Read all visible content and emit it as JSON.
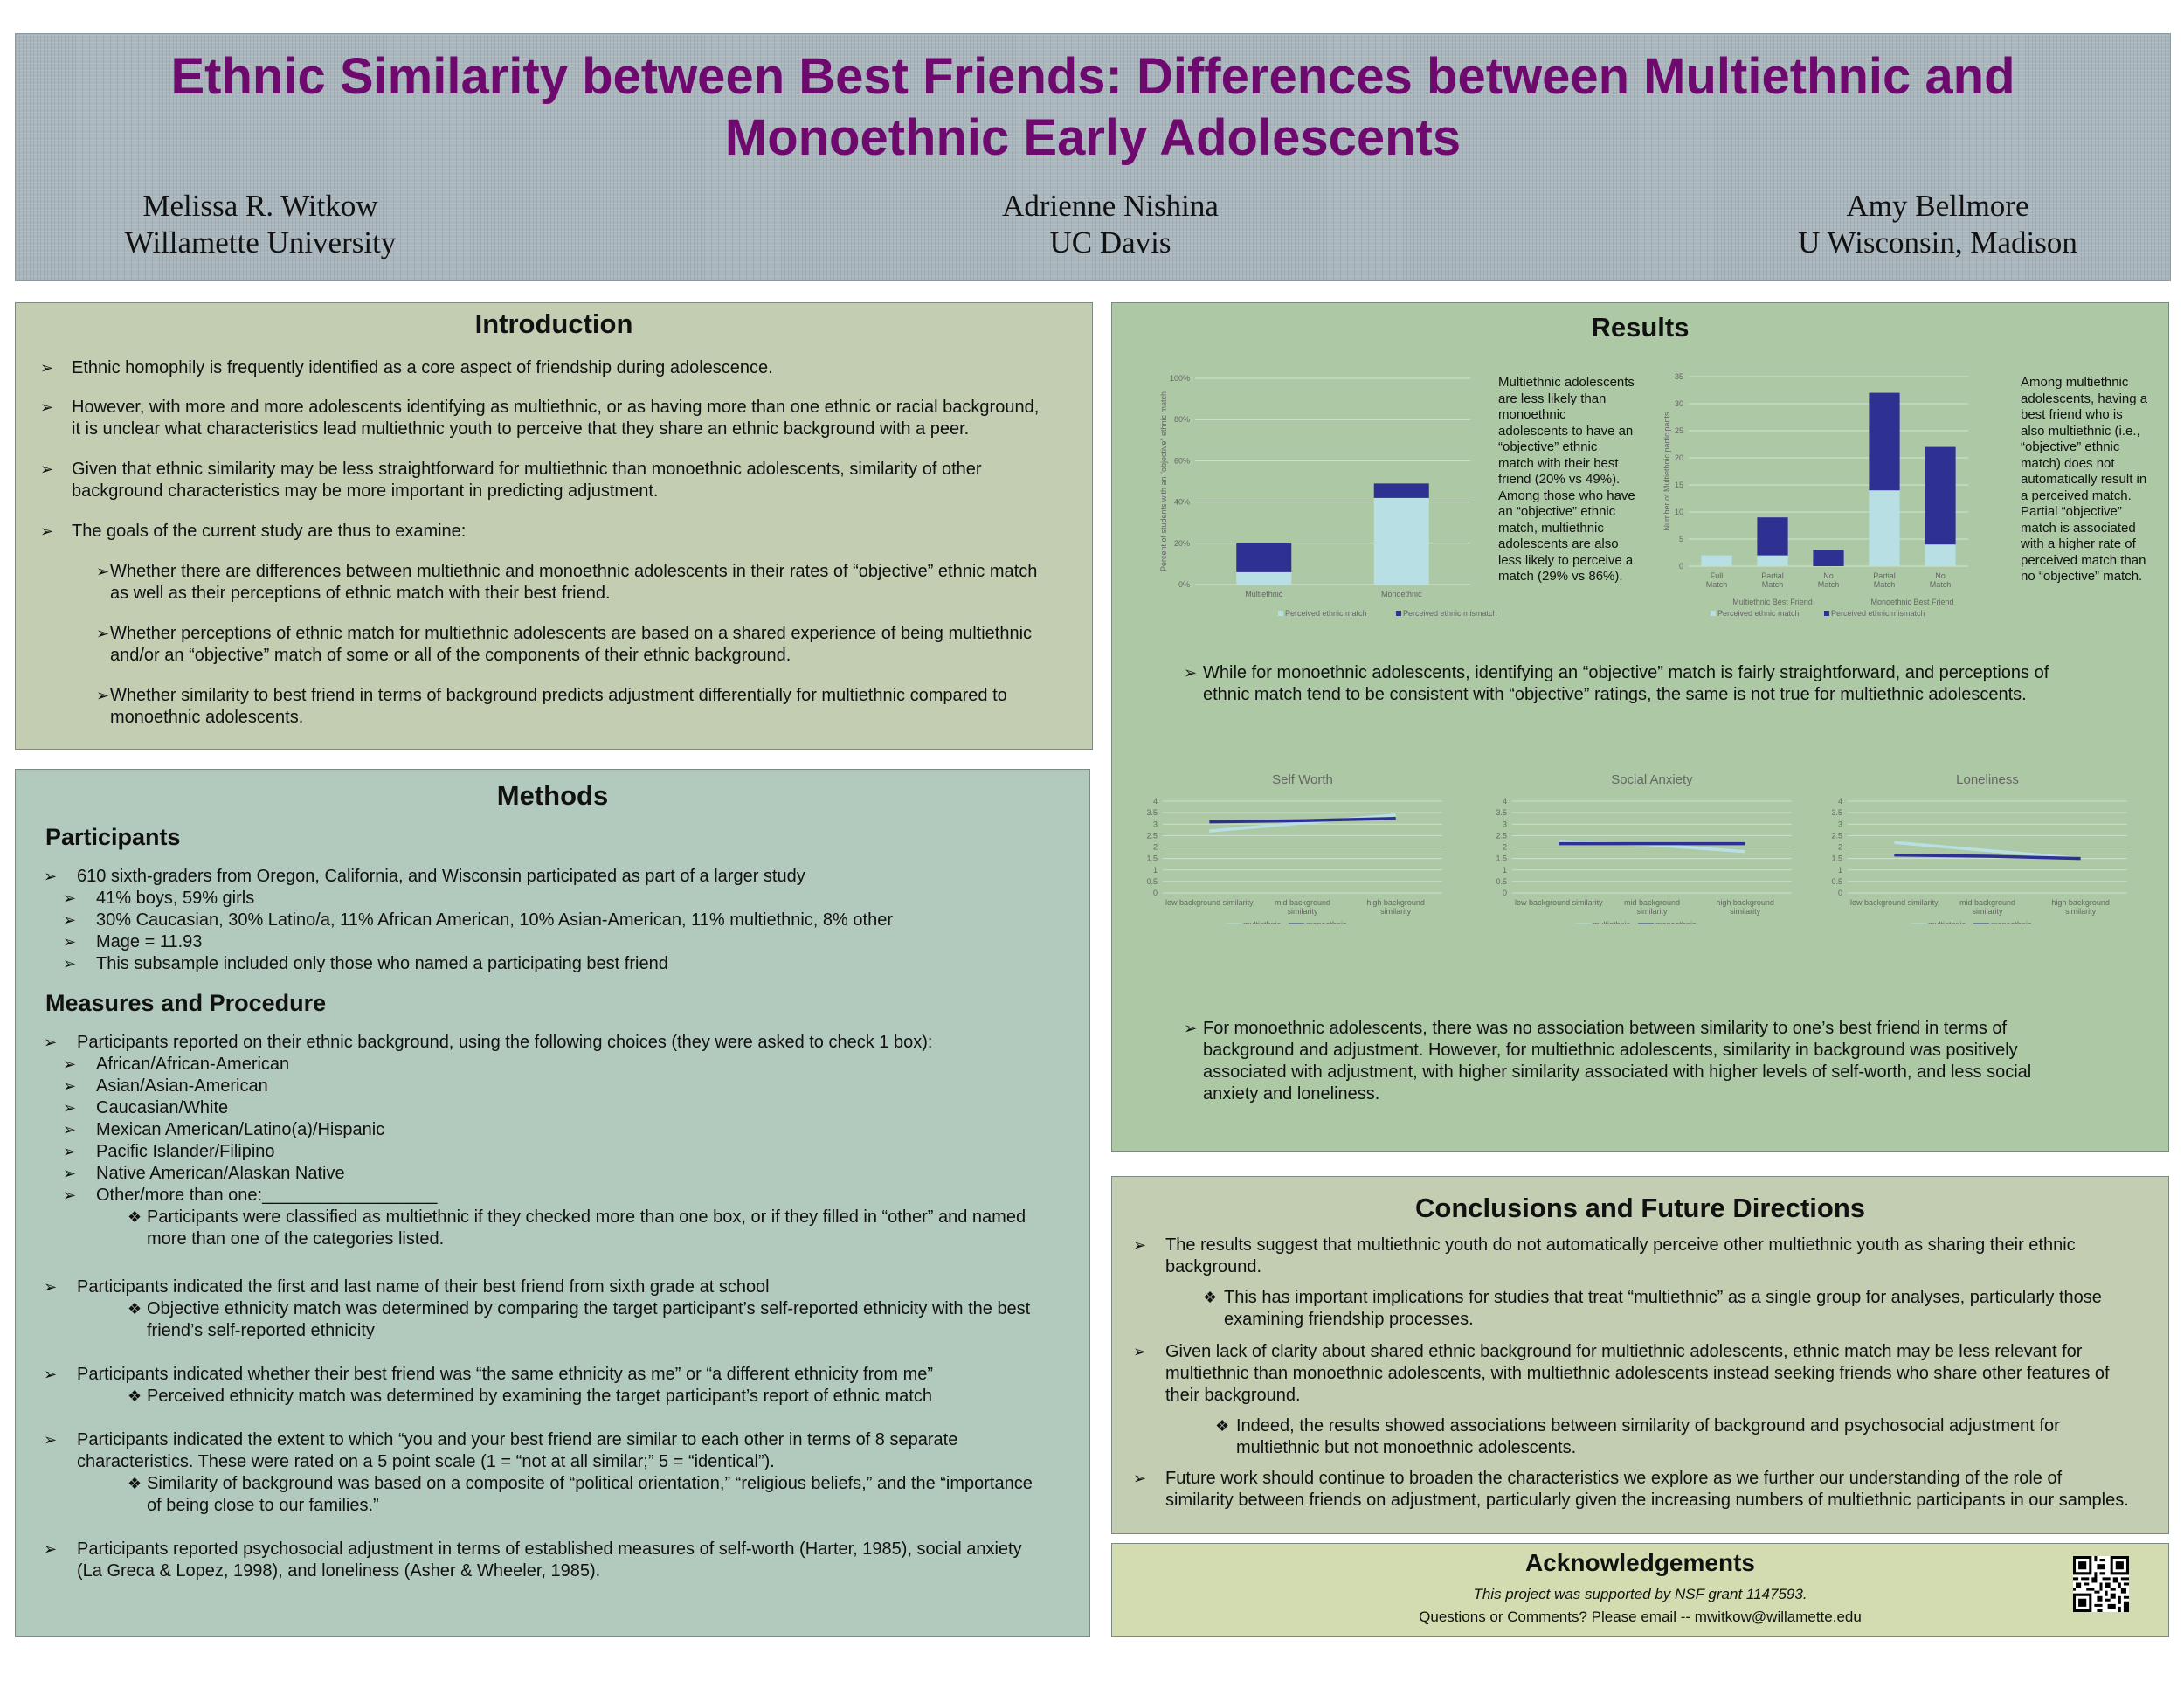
{
  "header": {
    "title_line1": "Ethnic Similarity between Best Friends: Differences between Multiethnic and",
    "title_line2": "Monoethnic Early Adolescents",
    "authors": [
      {
        "name": "Melissa R. Witkow",
        "affiliation": "Willamette University"
      },
      {
        "name": "Adrienne Nishina",
        "affiliation": "UC Davis"
      },
      {
        "name": "Amy Bellmore",
        "affiliation": "U Wisconsin, Madison"
      }
    ]
  },
  "introduction": {
    "heading": "Introduction",
    "bullets": [
      [
        "Ethnic homophily is frequently identified as a core aspect of friendship during adolescence."
      ],
      [
        "However, with more and more adolescents identifying as multiethnic, or as having more than one ethnic or racial background,",
        "it is unclear what characteristics lead multiethnic youth to perceive that they share an ethnic background with a peer."
      ],
      [
        "Given that ethnic similarity may be less straightforward for multiethnic than monoethnic adolescents, similarity of other",
        "background characteristics may be more important in predicting adjustment."
      ],
      [
        "The goals of the current study are thus to examine:"
      ]
    ],
    "goals": [
      [
        "Whether there are differences between multiethnic and monoethnic adolescents in their rates of “objective” ethnic match",
        "as well as their perceptions of ethnic match with their best friend."
      ],
      [
        "Whether perceptions of ethnic match for multiethnic adolescents are based on a shared experience of being multiethnic",
        "and/or an “objective” match of some or all of the components of their ethnic background."
      ],
      [
        "Whether similarity  to best friend in terms of background predicts adjustment differentially  for multiethnic compared to",
        "monoethnic adolescents."
      ]
    ]
  },
  "methods": {
    "heading": "Methods",
    "participants_heading": "Participants",
    "participants_main": "610 sixth-graders from Oregon, California, and Wisconsin participated as part of a larger study",
    "participants_sub": [
      "41% boys, 59% girls",
      "30% Caucasian, 30% Latino/a, 11% African American, 10% Asian-American, 11% multiethnic, 8% other",
      "Mage = 11.93",
      "This subsample included only those who named a participating best friend"
    ],
    "measures_heading": "Measures and Procedure",
    "m1": "Participants reported on their ethnic background, using the following choices (they were asked to check 1 box):",
    "choices": [
      "African/African-American",
      "Asian/Asian-American",
      "Caucasian/White",
      "Mexican American/Latino(a)/Hispanic",
      "Pacific Islander/Filipino",
      "Native American/Alaskan Native",
      "Other/more than one:__________________"
    ],
    "m1_note": [
      "Participants were classified as multiethnic if they checked more than one box, or if they filled in “other” and named",
      "more than one of the categories listed."
    ],
    "m2": "Participants indicated the first and last name of their best friend from sixth grade at school",
    "m2_note": [
      "Objective ethnicity match was determined by comparing the target participant’s self-reported ethnicity with the best",
      "friend’s self-reported ethnicity"
    ],
    "m3": "Participants indicated whether their best friend was “the same ethnicity as me” or “a different ethnicity from me”",
    "m3_note": "Perceived ethnicity match was determined by examining the target participant’s report of ethnic match",
    "m4": [
      "Participants indicated the extent to which “you and your best friend are similar to each other in terms of 8 separate",
      "characteristics.  These were rated on a 5 point scale (1 = “not at all similar;” 5 = “identical”)."
    ],
    "m4_note": [
      "Similarity of background was based on a composite of “political orientation,” “religious beliefs,” and the “importance",
      "of being close to our families.”"
    ],
    "m5": [
      "Participants reported psychosocial adjustment in terms of established measures of self-worth (Harter, 1985), social anxiety",
      "(La Greca & Lopez, 1998), and loneliness (Asher & Wheeler, 1985)."
    ]
  },
  "results": {
    "heading": "Results",
    "text1": [
      "Multiethnic adolescents",
      "are less likely than",
      "monoethnic",
      "adolescents to have an",
      "“objective” ethnic",
      "match with their best",
      "friend (20% vs 49%).",
      "Among those who have",
      "an “objective” ethnic",
      "match, multiethnic",
      "adolescents are also",
      "less likely to perceive a",
      "match (29% vs 86%)."
    ],
    "text2": [
      "Among multiethnic",
      "adolescents, having a",
      "best friend who is",
      "also multiethnic (i.e.,",
      "“objective” ethnic",
      "match) does not",
      "automatically result in",
      "a perceived match.",
      "Partial “objective”",
      "match is associated",
      "with a higher rate of",
      "perceived match than",
      "no “objective” match."
    ],
    "finding1": [
      "While for monoethnic adolescents, identifying an “objective” match is fairly straightforward, and perceptions of",
      "ethnic match tend to be consistent with “objective” ratings, the same is not true for multiethnic adolescents."
    ],
    "finding2": [
      "For monoethnic adolescents, there was no association between similarity  to one’s best friend in terms of",
      "background and adjustment.  However, for multiethnic adolescents, similarity  in background was positively",
      "associated with adjustment, with higher similarity associated with higher levels of self-worth, and less social",
      "anxiety and loneliness."
    ]
  },
  "conclusions": {
    "heading": "Conclusions and Future Directions",
    "c1": [
      "The results suggest that multiethnic youth do not automatically perceive other multiethnic youth as sharing their ethnic",
      "background."
    ],
    "c1_note": [
      "This has important implications for studies that treat “multiethnic” as a single group for analyses, particularly those",
      "examining friendship processes."
    ],
    "c2": [
      "Given lack of clarity about shared ethnic background for multiethnic adolescents, ethnic match may be less relevant for",
      "multiethnic than monoethnic adolescents, with multiethnic adolescents instead seeking friends who share other features of",
      "their background."
    ],
    "c2_note": [
      "Indeed, the results showed associations between similarity of background and psychosocial adjustment for",
      "multiethnic but not monoethnic adolescents."
    ],
    "c3": [
      "Future work should continue to broaden the characteristics we explore as we further our understanding of the role of",
      "similarity between friends on adjustment, particularly given the increasing numbers of multiethnic participants in our samples."
    ]
  },
  "acknowledgements": {
    "heading": "Acknowledgements",
    "line1": "This project was supported by NSF grant 1147593.",
    "line2": "Questions or Comments? Please email -- mwitkow@willamette.edu"
  },
  "colors": {
    "title": "#6e0a6e",
    "perceived_match": "#b8e0e4",
    "perceived_mismatch": "#2e3192",
    "multiethnic_line": "#b8e0e4",
    "monoethnic_line": "#2e3192"
  },
  "chart_data": [
    {
      "type": "bar",
      "stacked": true,
      "categories": [
        "Multiethnic",
        "Monoethnic"
      ],
      "ylabel": "Percent of students with an “objective” ethnic match",
      "ylim": [
        0,
        100
      ],
      "yticks": [
        "0%",
        "20%",
        "40%",
        "60%",
        "80%",
        "100%"
      ],
      "series": [
        {
          "name": "Perceived ethnic match",
          "values": [
            6,
            42
          ]
        },
        {
          "name": "Perceived ethnic mismatch",
          "values": [
            14,
            7
          ]
        }
      ]
    },
    {
      "type": "bar",
      "stacked": true,
      "categories": [
        "Full Match",
        "Partial Match",
        "No Match",
        "Partial Match",
        "No Match"
      ],
      "groups": [
        {
          "label": "Multiethnic Best Friend",
          "span": [
            0,
            2
          ]
        },
        {
          "label": "Monoethnic Best Friend",
          "span": [
            3,
            4
          ]
        }
      ],
      "ylabel": "Number of Multiethnic participants",
      "ylim": [
        0,
        35
      ],
      "yticks": [
        0,
        5,
        10,
        15,
        20,
        25,
        30,
        35
      ],
      "series": [
        {
          "name": "Perceived ethnic match",
          "values": [
            2,
            2,
            0,
            14,
            4
          ]
        },
        {
          "name": "Perceived ethnic mismatch",
          "values": [
            0,
            7,
            3,
            18,
            18
          ]
        }
      ]
    },
    {
      "type": "line",
      "title": "Self Worth",
      "categories": [
        "low background similarity",
        "mid background similarity",
        "high background similarity"
      ],
      "ylim": [
        0,
        4
      ],
      "yticks": [
        "0",
        "0.5",
        "1",
        "1.5",
        "2",
        "2.5",
        "3",
        "3.5",
        "4"
      ],
      "series": [
        {
          "name": "multiethnic",
          "values": [
            2.7,
            3.05,
            3.4
          ]
        },
        {
          "name": "monoethnic",
          "values": [
            3.1,
            3.15,
            3.25
          ]
        }
      ]
    },
    {
      "type": "line",
      "title": "Social Anxiety",
      "categories": [
        "low background similarity",
        "mid background similarity",
        "high background similarity"
      ],
      "ylim": [
        0,
        4
      ],
      "yticks": [
        "0",
        "0.5",
        "1",
        "1.5",
        "2",
        "2.5",
        "3",
        "3.5",
        "4"
      ],
      "series": [
        {
          "name": "multiethnic",
          "values": [
            2.25,
            2.1,
            1.8
          ]
        },
        {
          "name": "monoethnic",
          "values": [
            2.15,
            2.15,
            2.15
          ]
        }
      ]
    },
    {
      "type": "line",
      "title": "Loneliness",
      "categories": [
        "low background similarity",
        "mid background similarity",
        "high background similarity"
      ],
      "ylim": [
        0,
        4
      ],
      "yticks": [
        "0",
        "0.5",
        "1",
        "1.5",
        "2",
        "2.5",
        "3",
        "3.5",
        "4"
      ],
      "series": [
        {
          "name": "multiethnic",
          "values": [
            2.2,
            1.85,
            1.5
          ]
        },
        {
          "name": "monoethnic",
          "values": [
            1.65,
            1.6,
            1.5
          ]
        }
      ]
    }
  ]
}
